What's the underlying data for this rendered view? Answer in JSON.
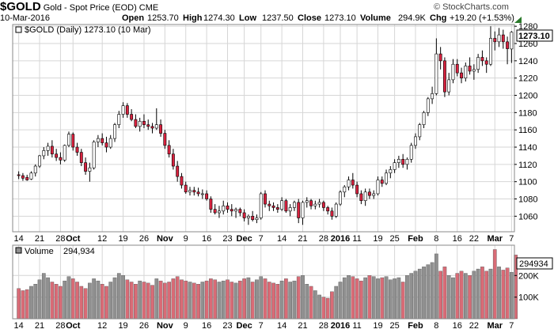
{
  "header": {
    "symbol": "$GOLD",
    "description": "Gold - Spot Price (EOD)",
    "exchange": "CME",
    "watermark": "© StockCharts.com",
    "date": "10-Mar-2016",
    "open_label": "Open",
    "open": "1253.70",
    "high_label": "High",
    "high": "1274.30",
    "low_label": "Low",
    "low": "1237.50",
    "close_label": "Close",
    "close": "1273.10",
    "volume_label": "Volume",
    "volume": "294.9K",
    "chg_label": "Chg",
    "chg": "+19.20 (+1.53%)"
  },
  "colors": {
    "up": "#ffffff",
    "down": "#d9223f",
    "vol_up": "#909090",
    "vol_down": "#d96b76",
    "grid": "#d6d6d6"
  },
  "chart_data": [
    {
      "type": "candlestick",
      "legend": "$GOLD (Daily) 1273.10 (10 Mar)",
      "last_price_tag": "1273.10",
      "ylim": [
        1042,
        1282
      ],
      "yticks": [
        1060,
        1080,
        1100,
        1120,
        1140,
        1160,
        1180,
        1200,
        1220,
        1240,
        1260,
        1280
      ],
      "xticks": [
        {
          "label": "14",
          "i": 0
        },
        {
          "label": "21",
          "i": 5
        },
        {
          "label": "28",
          "i": 10
        },
        {
          "label": "Oct",
          "i": 13,
          "bold": true
        },
        {
          "label": "12",
          "i": 20
        },
        {
          "label": "19",
          "i": 25
        },
        {
          "label": "26",
          "i": 30
        },
        {
          "label": "Nov",
          "i": 35,
          "bold": true
        },
        {
          "label": "9",
          "i": 40
        },
        {
          "label": "16",
          "i": 45
        },
        {
          "label": "23",
          "i": 50
        },
        {
          "label": "Dec",
          "i": 54,
          "bold": true
        },
        {
          "label": "7",
          "i": 58
        },
        {
          "label": "14",
          "i": 63
        },
        {
          "label": "21",
          "i": 68
        },
        {
          "label": "28",
          "i": 73
        },
        {
          "label": "2016",
          "i": 77,
          "bold": true
        },
        {
          "label": "11",
          "i": 81
        },
        {
          "label": "19",
          "i": 86
        },
        {
          "label": "25",
          "i": 90
        },
        {
          "label": "Feb",
          "i": 95,
          "bold": true
        },
        {
          "label": "8",
          "i": 100
        },
        {
          "label": "16",
          "i": 105
        },
        {
          "label": "22",
          "i": 109
        },
        {
          "label": "Mar",
          "i": 114,
          "bold": true
        },
        {
          "label": "7",
          "i": 118
        }
      ],
      "candles": [
        [
          1108,
          1112,
          1103,
          1107
        ],
        [
          1107,
          1110,
          1101,
          1104
        ],
        [
          1105,
          1108,
          1101,
          1102
        ],
        [
          1103,
          1112,
          1102,
          1110
        ],
        [
          1110,
          1120,
          1106,
          1118
        ],
        [
          1118,
          1131,
          1116,
          1130
        ],
        [
          1130,
          1140,
          1126,
          1136
        ],
        [
          1136,
          1145,
          1130,
          1141
        ],
        [
          1141,
          1148,
          1128,
          1132
        ],
        [
          1132,
          1138,
          1124,
          1128
        ],
        [
          1128,
          1134,
          1120,
          1125
        ],
        [
          1125,
          1143,
          1123,
          1142
        ],
        [
          1142,
          1158,
          1140,
          1155
        ],
        [
          1155,
          1157,
          1136,
          1140
        ],
        [
          1140,
          1145,
          1130,
          1134
        ],
        [
          1134,
          1138,
          1118,
          1122
        ],
        [
          1122,
          1128,
          1108,
          1112
        ],
        [
          1112,
          1122,
          1100,
          1116
        ],
        [
          1116,
          1148,
          1114,
          1146
        ],
        [
          1146,
          1154,
          1140,
          1150
        ],
        [
          1150,
          1156,
          1142,
          1145
        ],
        [
          1145,
          1152,
          1134,
          1140
        ],
        [
          1140,
          1154,
          1138,
          1150
        ],
        [
          1150,
          1168,
          1146,
          1166
        ],
        [
          1166,
          1182,
          1162,
          1178
        ],
        [
          1178,
          1192,
          1174,
          1188
        ],
        [
          1188,
          1191,
          1174,
          1178
        ],
        [
          1178,
          1184,
          1170,
          1172
        ],
        [
          1172,
          1178,
          1162,
          1164
        ],
        [
          1164,
          1174,
          1158,
          1170
        ],
        [
          1170,
          1178,
          1162,
          1166
        ],
        [
          1166,
          1172,
          1160,
          1164
        ],
        [
          1164,
          1168,
          1156,
          1162
        ],
        [
          1162,
          1185,
          1160,
          1166
        ],
        [
          1166,
          1172,
          1152,
          1156
        ],
        [
          1156,
          1160,
          1138,
          1142
        ],
        [
          1142,
          1148,
          1128,
          1132
        ],
        [
          1132,
          1138,
          1114,
          1118
        ],
        [
          1118,
          1124,
          1100,
          1106
        ],
        [
          1106,
          1110,
          1092,
          1096
        ],
        [
          1096,
          1100,
          1086,
          1088
        ],
        [
          1088,
          1094,
          1084,
          1090
        ],
        [
          1090,
          1094,
          1084,
          1088
        ],
        [
          1088,
          1093,
          1083,
          1086
        ],
        [
          1086,
          1091,
          1080,
          1086
        ],
        [
          1086,
          1090,
          1078,
          1080
        ],
        [
          1080,
          1083,
          1064,
          1068
        ],
        [
          1068,
          1074,
          1062,
          1064
        ],
        [
          1064,
          1072,
          1058,
          1066
        ],
        [
          1066,
          1078,
          1062,
          1072
        ],
        [
          1072,
          1076,
          1064,
          1068
        ],
        [
          1068,
          1074,
          1060,
          1066
        ],
        [
          1066,
          1070,
          1058,
          1068
        ],
        [
          1068,
          1070,
          1060,
          1064
        ],
        [
          1064,
          1068,
          1054,
          1058
        ],
        [
          1058,
          1062,
          1050,
          1060
        ],
        [
          1060,
          1066,
          1054,
          1056
        ],
        [
          1056,
          1062,
          1052,
          1058
        ],
        [
          1058,
          1088,
          1056,
          1086
        ],
        [
          1086,
          1090,
          1070,
          1074
        ],
        [
          1074,
          1078,
          1066,
          1072
        ],
        [
          1072,
          1076,
          1066,
          1070
        ],
        [
          1070,
          1074,
          1064,
          1068
        ],
        [
          1068,
          1082,
          1066,
          1078
        ],
        [
          1078,
          1080,
          1064,
          1066
        ],
        [
          1066,
          1074,
          1060,
          1070
        ],
        [
          1070,
          1078,
          1066,
          1076
        ],
        [
          1076,
          1080,
          1052,
          1058
        ],
        [
          1058,
          1078,
          1050,
          1076
        ],
        [
          1076,
          1082,
          1070,
          1078
        ],
        [
          1078,
          1080,
          1068,
          1072
        ],
        [
          1072,
          1078,
          1068,
          1074
        ],
        [
          1074,
          1080,
          1070,
          1076
        ],
        [
          1076,
          1078,
          1066,
          1070
        ],
        [
          1070,
          1072,
          1062,
          1066
        ],
        [
          1066,
          1070,
          1056,
          1060
        ],
        [
          1060,
          1076,
          1058,
          1074
        ],
        [
          1074,
          1090,
          1072,
          1088
        ],
        [
          1088,
          1096,
          1082,
          1094
        ],
        [
          1094,
          1106,
          1090,
          1102
        ],
        [
          1102,
          1110,
          1092,
          1096
        ],
        [
          1096,
          1100,
          1082,
          1086
        ],
        [
          1086,
          1090,
          1074,
          1078
        ],
        [
          1078,
          1092,
          1072,
          1088
        ],
        [
          1088,
          1092,
          1080,
          1084
        ],
        [
          1084,
          1090,
          1080,
          1086
        ],
        [
          1086,
          1106,
          1084,
          1102
        ],
        [
          1102,
          1106,
          1094,
          1098
        ],
        [
          1098,
          1114,
          1096,
          1110
        ],
        [
          1110,
          1118,
          1104,
          1114
        ],
        [
          1114,
          1126,
          1110,
          1122
        ],
        [
          1122,
          1130,
          1116,
          1126
        ],
        [
          1126,
          1132,
          1116,
          1120
        ],
        [
          1120,
          1128,
          1114,
          1126
        ],
        [
          1126,
          1145,
          1122,
          1142
        ],
        [
          1142,
          1156,
          1138,
          1152
        ],
        [
          1152,
          1168,
          1148,
          1166
        ],
        [
          1166,
          1182,
          1162,
          1180
        ],
        [
          1180,
          1198,
          1176,
          1196
        ],
        [
          1196,
          1210,
          1190,
          1202
        ],
        [
          1202,
          1266,
          1200,
          1248
        ],
        [
          1248,
          1256,
          1230,
          1240
        ],
        [
          1240,
          1244,
          1198,
          1204
        ],
        [
          1204,
          1226,
          1200,
          1218
        ],
        [
          1218,
          1242,
          1214,
          1236
        ],
        [
          1236,
          1242,
          1222,
          1226
        ],
        [
          1226,
          1232,
          1214,
          1220
        ],
        [
          1220,
          1238,
          1216,
          1234
        ],
        [
          1234,
          1244,
          1224,
          1228
        ],
        [
          1228,
          1236,
          1218,
          1230
        ],
        [
          1230,
          1248,
          1226,
          1244
        ],
        [
          1244,
          1252,
          1234,
          1240
        ],
        [
          1240,
          1244,
          1226,
          1236
        ],
        [
          1236,
          1280,
          1234,
          1266
        ],
        [
          1266,
          1274,
          1252,
          1262
        ],
        [
          1262,
          1278,
          1256,
          1270
        ],
        [
          1270,
          1276,
          1254,
          1262
        ],
        [
          1262,
          1268,
          1236,
          1254
        ],
        [
          1253.7,
          1274.3,
          1237.5,
          1273.1
        ]
      ]
    },
    {
      "type": "bar",
      "legend_label": "Volume",
      "legend_value": "294,934",
      "last_volume_tag": "294934",
      "ylim": [
        0,
        340000
      ],
      "yticks": [
        {
          "value": 100000,
          "label": "100K"
        },
        {
          "value": 200000,
          "label": "200K"
        }
      ],
      "values": [
        140000,
        130000,
        135000,
        150000,
        160000,
        180000,
        210000,
        190000,
        170000,
        160000,
        150000,
        175000,
        195000,
        185000,
        170000,
        150000,
        140000,
        165000,
        185000,
        175000,
        160000,
        150000,
        170000,
        190000,
        210000,
        200000,
        180000,
        170000,
        160000,
        175000,
        170000,
        165000,
        155000,
        185000,
        175000,
        165000,
        170000,
        185000,
        195000,
        180000,
        175000,
        170000,
        165000,
        160000,
        170000,
        175000,
        185000,
        180000,
        170000,
        175000,
        180000,
        170000,
        165000,
        175000,
        185000,
        190000,
        170000,
        180000,
        195000,
        185000,
        170000,
        165000,
        160000,
        175000,
        185000,
        170000,
        175000,
        195000,
        200000,
        160000,
        150000,
        130000,
        110000,
        100000,
        95000,
        125000,
        150000,
        170000,
        190000,
        200000,
        195000,
        185000,
        175000,
        190000,
        200000,
        195000,
        185000,
        190000,
        195000,
        180000,
        185000,
        190000,
        170000,
        200000,
        210000,
        220000,
        230000,
        240000,
        250000,
        260000,
        300000,
        220000,
        240000,
        200000,
        190000,
        210000,
        220000,
        210000,
        200000,
        220000,
        230000,
        240000,
        220000,
        230000,
        320000,
        240000,
        225000,
        235000,
        215000,
        294934
      ]
    }
  ]
}
